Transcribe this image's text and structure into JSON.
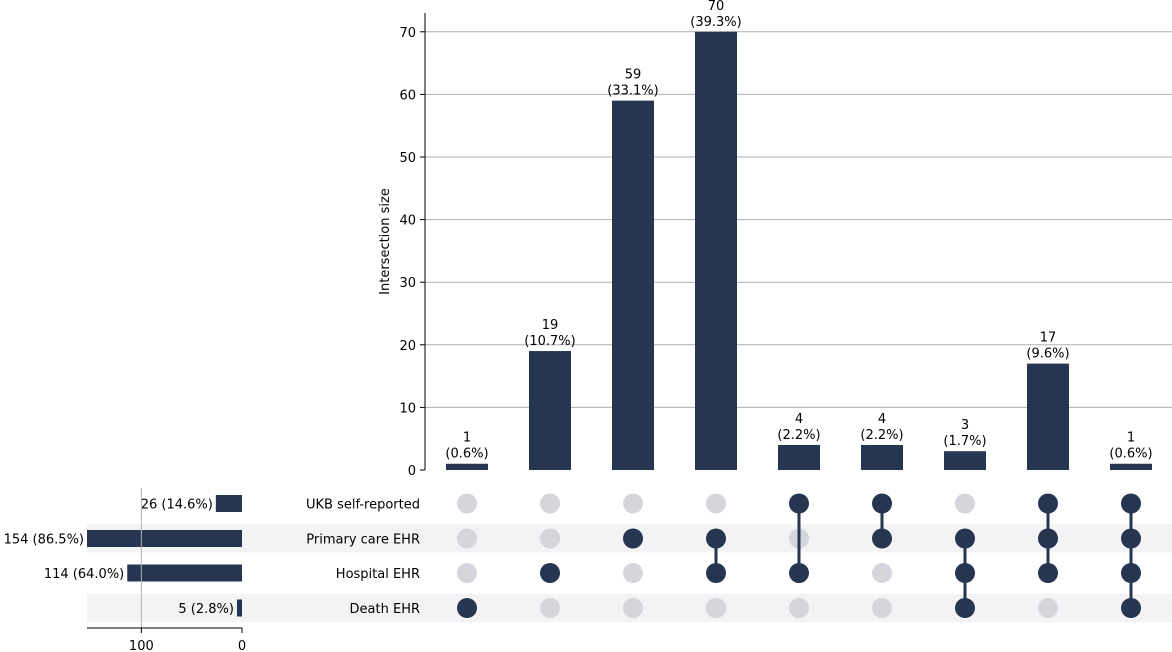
{
  "chart_data": {
    "type": "upset",
    "bar_color": "#263550",
    "inactive_dot_color": "#d4d6dc",
    "stripe_color": "#f3f3f5",
    "grid_color": "#b0b0b0",
    "intersections": {
      "ylabel": "Intersection size",
      "ylim": [
        0,
        73
      ],
      "yticks": [
        0,
        10,
        20,
        30,
        40,
        50,
        60,
        70
      ],
      "counts": [
        1,
        19,
        59,
        70,
        4,
        4,
        3,
        17,
        1
      ],
      "labels": [
        {
          "count": "1",
          "pct": "(0.6%)"
        },
        {
          "count": "19",
          "pct": "(10.7%)"
        },
        {
          "count": "59",
          "pct": "(33.1%)"
        },
        {
          "count": "70",
          "pct": "(39.3%)"
        },
        {
          "count": "4",
          "pct": "(2.2%)"
        },
        {
          "count": "4",
          "pct": "(2.2%)"
        },
        {
          "count": "3",
          "pct": "(1.7%)"
        },
        {
          "count": "17",
          "pct": "(9.6%)"
        },
        {
          "count": "1",
          "pct": "(0.6%)"
        }
      ],
      "membership": [
        [
          3
        ],
        [
          2
        ],
        [
          1
        ],
        [
          1,
          2
        ],
        [
          0,
          2
        ],
        [
          0,
          1
        ],
        [
          1,
          2,
          3
        ],
        [
          0,
          1,
          2
        ],
        [
          0,
          1,
          2,
          3
        ]
      ]
    },
    "sets": {
      "names": [
        "UKB self-reported",
        "Primary care EHR",
        "Hospital EHR",
        "Death EHR"
      ],
      "sizes": [
        26,
        154,
        114,
        5
      ],
      "labels": [
        "26 (14.6%)",
        "154 (86.5%)",
        "114 (64.0%)",
        "5 (2.8%)"
      ],
      "xlim": [
        0,
        154
      ],
      "xticks": [
        100,
        0
      ]
    }
  }
}
